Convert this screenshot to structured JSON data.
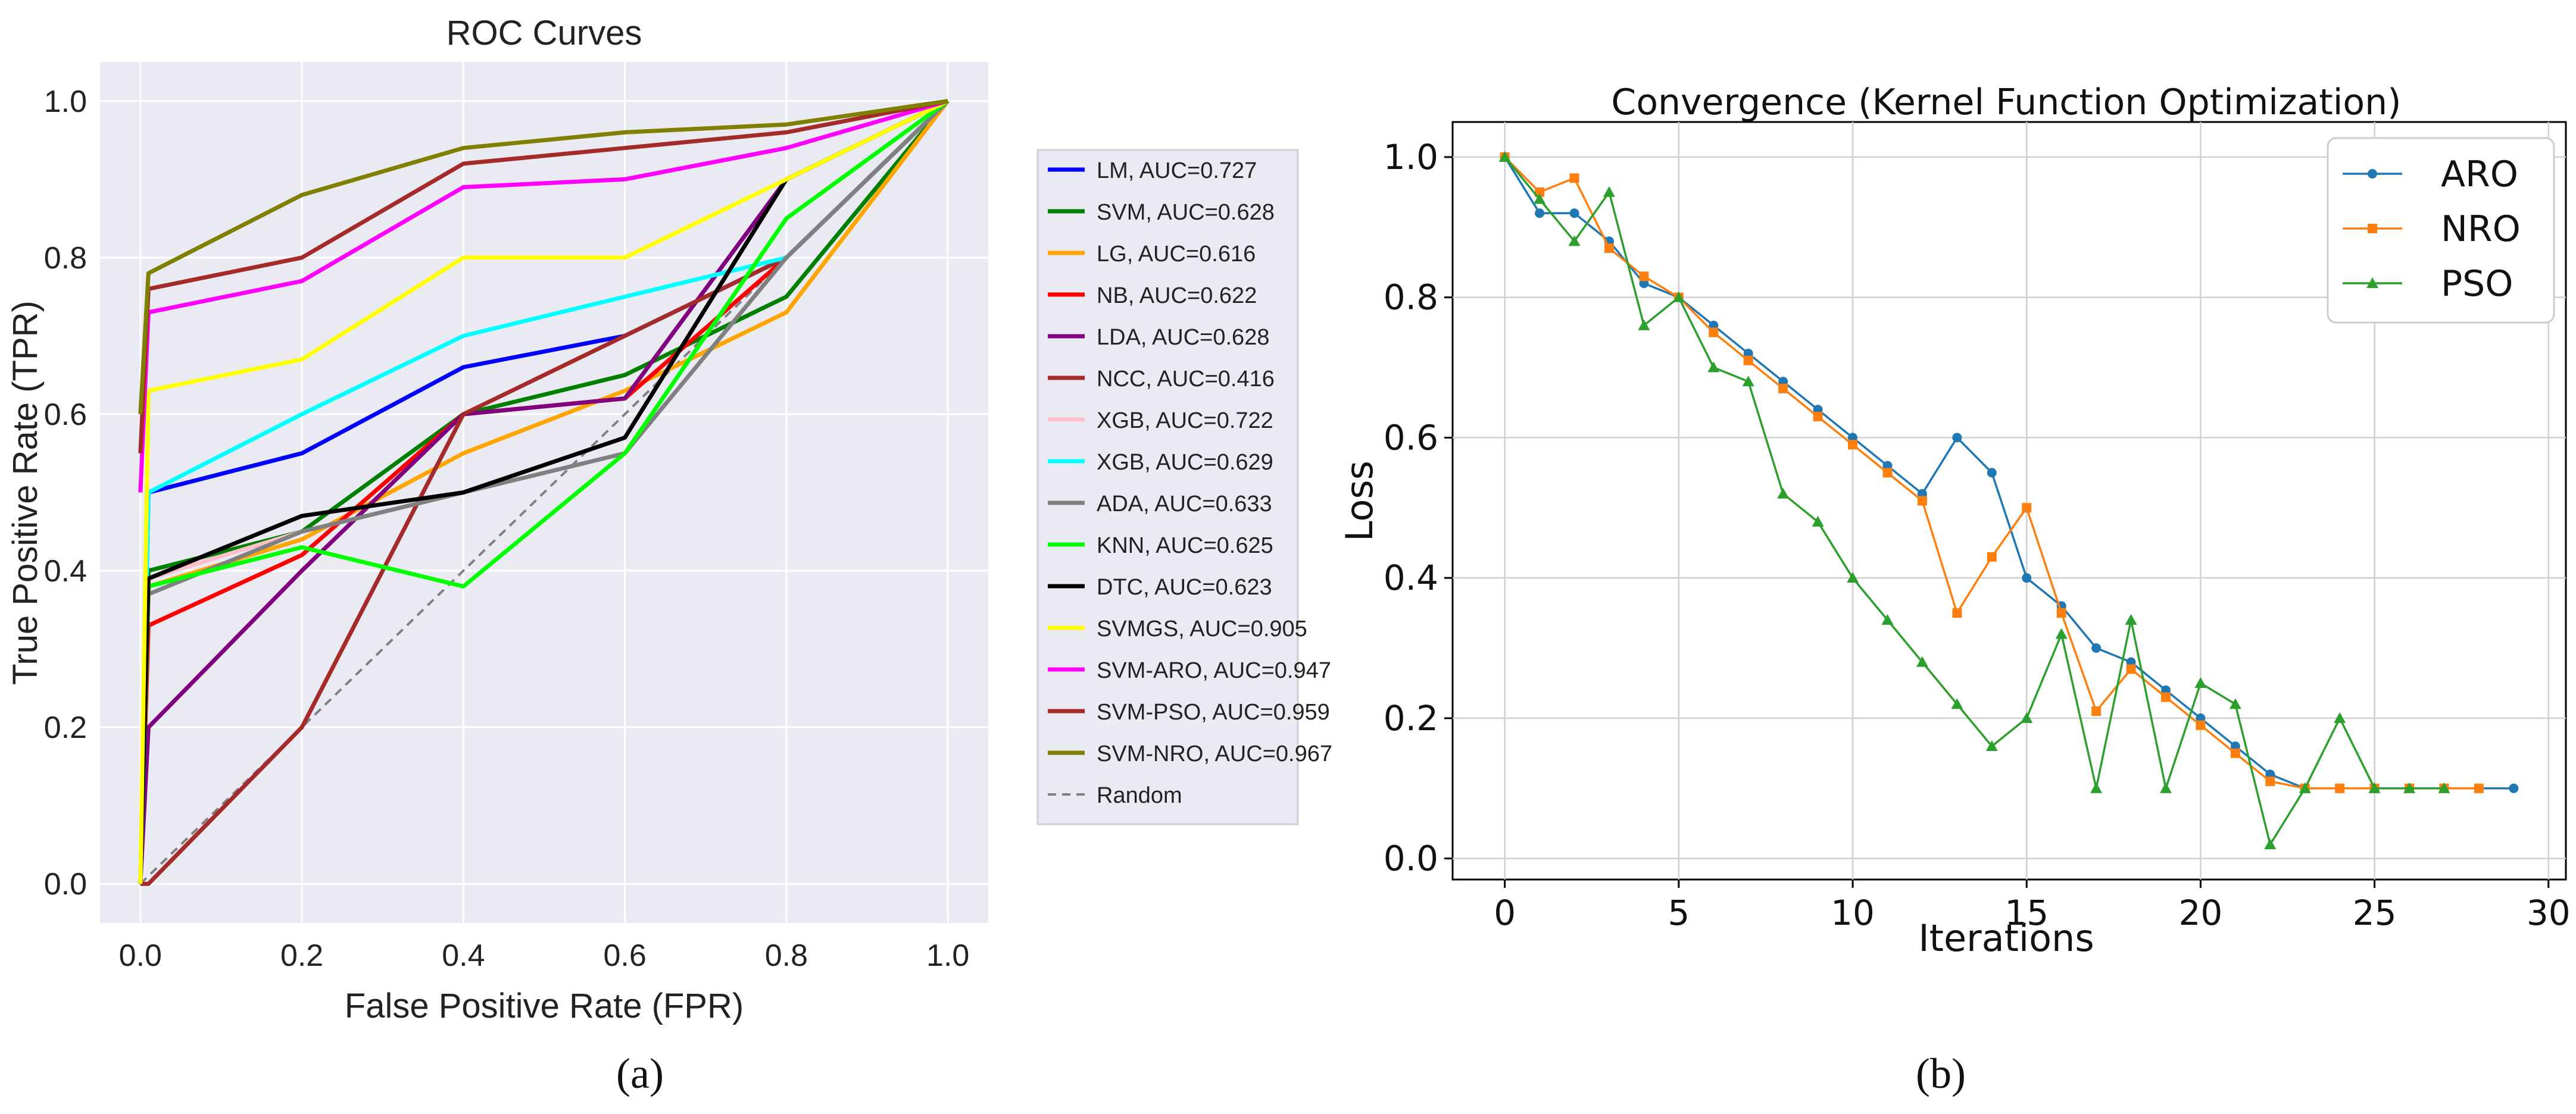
{
  "chart_data": [
    {
      "type": "line",
      "title": "ROC Curves",
      "xlabel": "False Positive Rate (FPR)",
      "ylabel": "True Positive Rate (TPR)",
      "xlim": [
        -0.05,
        1.05
      ],
      "ylim": [
        -0.05,
        1.05
      ],
      "xticks": [
        "0.0",
        "0.2",
        "0.4",
        "0.6",
        "0.8",
        "1.0"
      ],
      "yticks": [
        "0.0",
        "0.2",
        "0.4",
        "0.6",
        "0.8",
        "1.0"
      ],
      "grid": true,
      "legend_position": "outside-right",
      "caption": "(a)",
      "series": [
        {
          "name": "LM, AUC=0.727",
          "color": "#0000ff",
          "x": [
            0,
            0.01,
            0.2,
            0.4,
            0.6,
            0.8,
            1.0
          ],
          "y": [
            0,
            0.5,
            0.55,
            0.66,
            0.7,
            0.8,
            1.0
          ]
        },
        {
          "name": "SVM, AUC=0.628",
          "color": "#008000",
          "x": [
            0,
            0.01,
            0.2,
            0.4,
            0.6,
            0.8,
            1.0
          ],
          "y": [
            0,
            0.4,
            0.45,
            0.6,
            0.65,
            0.75,
            1.0
          ]
        },
        {
          "name": "LG, AUC=0.616",
          "color": "#ffa500",
          "x": [
            0,
            0.01,
            0.2,
            0.4,
            0.6,
            0.8,
            1.0
          ],
          "y": [
            0,
            0.38,
            0.44,
            0.55,
            0.63,
            0.73,
            1.0
          ]
        },
        {
          "name": "NB, AUC=0.622",
          "color": "#ff0000",
          "x": [
            0,
            0.01,
            0.2,
            0.4,
            0.6,
            0.8,
            1.0
          ],
          "y": [
            0,
            0.33,
            0.42,
            0.6,
            0.62,
            0.8,
            1.0
          ]
        },
        {
          "name": "LDA, AUC=0.628",
          "color": "#800080",
          "x": [
            0,
            0.01,
            0.2,
            0.4,
            0.6,
            0.8,
            1.0
          ],
          "y": [
            0,
            0.2,
            0.4,
            0.6,
            0.62,
            0.9,
            1.0
          ]
        },
        {
          "name": "NCC, AUC=0.416",
          "color": "#a52a2a",
          "x": [
            0,
            0.01,
            0.2,
            0.4,
            0.6,
            0.8,
            1.0
          ],
          "y": [
            0,
            0,
            0.2,
            0.6,
            0.7,
            0.8,
            1.0
          ]
        },
        {
          "name": "XGB, AUC=0.722",
          "color": "#ffc0cb",
          "x": [
            0,
            0.01,
            0.2,
            0.4,
            0.6,
            0.8,
            1.0
          ],
          "y": [
            0,
            0.39,
            0.45,
            0.5,
            0.57,
            0.9,
            1.0
          ]
        },
        {
          "name": "XGB, AUC=0.629",
          "color": "#00ffff",
          "x": [
            0,
            0.01,
            0.2,
            0.4,
            0.6,
            0.8,
            1.0
          ],
          "y": [
            0,
            0.5,
            0.6,
            0.7,
            0.75,
            0.8,
            1.0
          ]
        },
        {
          "name": "ADA, AUC=0.633",
          "color": "#808080",
          "x": [
            0,
            0.01,
            0.2,
            0.4,
            0.6,
            0.8,
            1.0
          ],
          "y": [
            0,
            0.37,
            0.45,
            0.5,
            0.55,
            0.8,
            1.0
          ]
        },
        {
          "name": "KNN, AUC=0.625",
          "color": "#00ff00",
          "x": [
            0,
            0.01,
            0.2,
            0.4,
            0.6,
            0.8,
            1.0
          ],
          "y": [
            0,
            0.38,
            0.43,
            0.38,
            0.55,
            0.85,
            1.0
          ]
        },
        {
          "name": "DTC, AUC=0.623",
          "color": "#000000",
          "x": [
            0,
            0.01,
            0.2,
            0.4,
            0.6,
            0.8,
            1.0
          ],
          "y": [
            0,
            0.39,
            0.47,
            0.5,
            0.57,
            0.9,
            1.0
          ]
        },
        {
          "name": "SVMGS, AUC=0.905",
          "color": "#ffff00",
          "x": [
            0,
            0.01,
            0.2,
            0.4,
            0.6,
            0.8,
            1.0
          ],
          "y": [
            0,
            0.63,
            0.67,
            0.8,
            0.8,
            0.9,
            1.0
          ]
        },
        {
          "name": "SVM-ARO, AUC=0.947",
          "color": "#ff00ff",
          "x": [
            0,
            0.01,
            0.2,
            0.4,
            0.6,
            0.8,
            1.0
          ],
          "y": [
            0.5,
            0.73,
            0.77,
            0.89,
            0.9,
            0.94,
            1.0
          ]
        },
        {
          "name": "SVM-PSO, AUC=0.959",
          "color": "#a52a2a",
          "x": [
            0,
            0.01,
            0.2,
            0.4,
            0.6,
            0.8,
            1.0
          ],
          "y": [
            0.55,
            0.76,
            0.8,
            0.92,
            0.94,
            0.96,
            1.0
          ]
        },
        {
          "name": "SVM-NRO, AUC=0.967",
          "color": "#808000",
          "x": [
            0,
            0.01,
            0.2,
            0.4,
            0.6,
            0.8,
            1.0
          ],
          "y": [
            0.6,
            0.78,
            0.88,
            0.94,
            0.96,
            0.97,
            1.0
          ]
        },
        {
          "name": "Random",
          "color": "#808080",
          "dashed": true,
          "x": [
            0,
            1.0
          ],
          "y": [
            0,
            1.0
          ]
        }
      ]
    },
    {
      "type": "line",
      "title": "Convergence (Kernel Function Optimization)",
      "xlabel": "Iterations",
      "ylabel": "Loss",
      "xlim": [
        -1.5,
        30.5
      ],
      "ylim": [
        -0.03,
        1.05
      ],
      "xticks": [
        "0",
        "5",
        "10",
        "15",
        "20",
        "25",
        "30"
      ],
      "yticks": [
        "0.0",
        "0.2",
        "0.4",
        "0.6",
        "0.8",
        "1.0"
      ],
      "grid": true,
      "legend_position": "top-right",
      "caption": "(b)",
      "series": [
        {
          "name": "ARO",
          "color": "#1f77b4",
          "marker": "circle",
          "x": [
            0,
            1,
            2,
            3,
            4,
            5,
            6,
            7,
            8,
            9,
            10,
            11,
            12,
            13,
            14,
            15,
            16,
            17,
            18,
            19,
            20,
            21,
            22,
            23,
            24,
            25,
            26,
            27,
            28,
            29
          ],
          "y": [
            1.0,
            0.92,
            0.92,
            0.88,
            0.82,
            0.8,
            0.76,
            0.72,
            0.68,
            0.64,
            0.6,
            0.56,
            0.52,
            0.6,
            0.55,
            0.4,
            0.36,
            0.3,
            0.28,
            0.24,
            0.2,
            0.16,
            0.12,
            0.1,
            0.1,
            0.1,
            0.1,
            0.1,
            0.1,
            0.1
          ]
        },
        {
          "name": "NRO",
          "color": "#ff7f0e",
          "marker": "square",
          "x": [
            0,
            1,
            2,
            3,
            4,
            5,
            6,
            7,
            8,
            9,
            10,
            11,
            12,
            13,
            14,
            15,
            16,
            17,
            18,
            19,
            20,
            21,
            22,
            23,
            24,
            25,
            26,
            27,
            28
          ],
          "y": [
            1.0,
            0.95,
            0.97,
            0.87,
            0.83,
            0.8,
            0.75,
            0.71,
            0.67,
            0.63,
            0.59,
            0.55,
            0.51,
            0.35,
            0.43,
            0.5,
            0.35,
            0.21,
            0.27,
            0.23,
            0.19,
            0.15,
            0.11,
            0.1,
            0.1,
            0.1,
            0.1,
            0.1,
            0.1
          ]
        },
        {
          "name": "PSO",
          "color": "#2ca02c",
          "marker": "triangle",
          "x": [
            0,
            1,
            2,
            3,
            4,
            5,
            6,
            7,
            8,
            9,
            10,
            11,
            12,
            13,
            14,
            15,
            16,
            17,
            18,
            19,
            20,
            21,
            22,
            23,
            24,
            25,
            26,
            27
          ],
          "y": [
            1.0,
            0.94,
            0.88,
            0.95,
            0.76,
            0.8,
            0.7,
            0.68,
            0.52,
            0.48,
            0.4,
            0.34,
            0.28,
            0.22,
            0.16,
            0.2,
            0.32,
            0.1,
            0.34,
            0.1,
            0.25,
            0.22,
            0.02,
            0.1,
            0.2,
            0.1,
            0.1,
            0.1
          ]
        }
      ]
    }
  ]
}
